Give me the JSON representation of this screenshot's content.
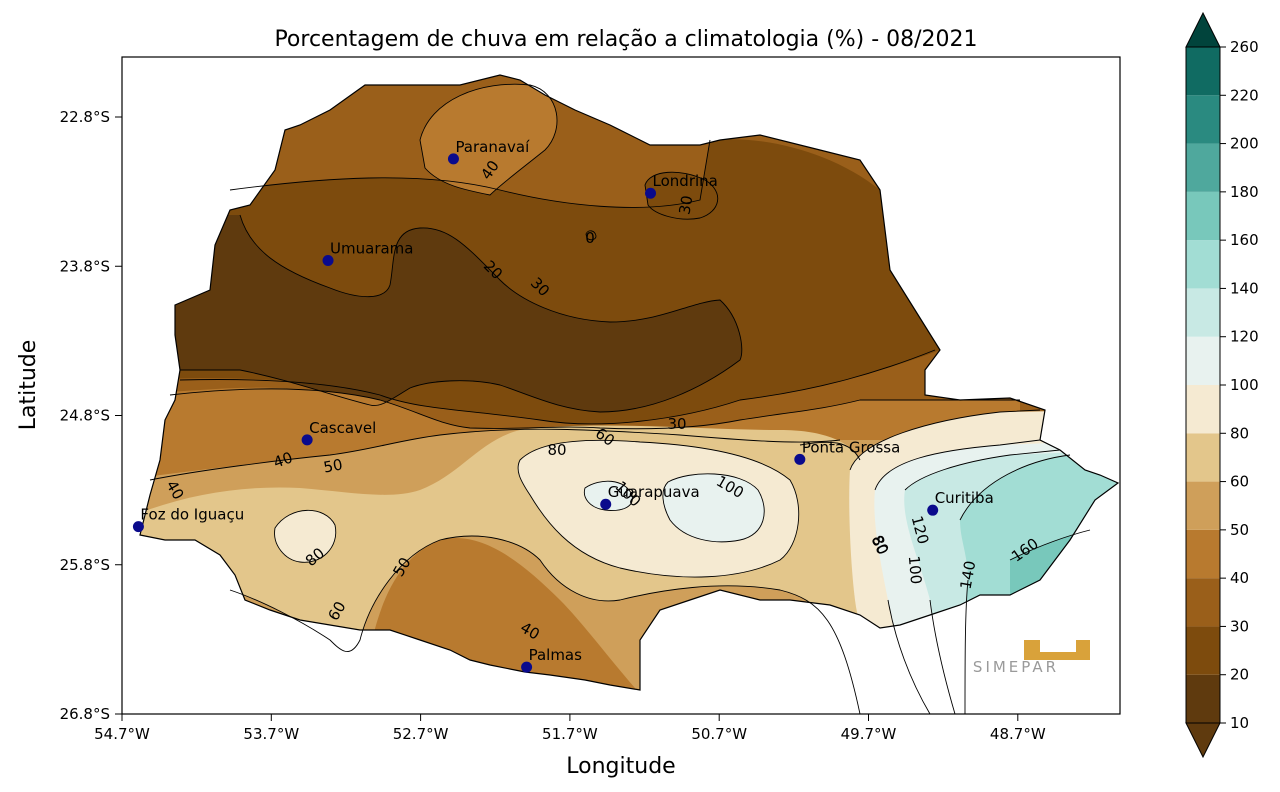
{
  "title": "Porcentagem de chuva em relação a climatologia (%) - 08/2021",
  "xlabel": "Longitude",
  "ylabel": "Latitude",
  "x_ticks": [
    "54.7°W",
    "53.7°W",
    "52.7°W",
    "51.7°W",
    "50.7°W",
    "49.7°W",
    "48.7°W"
  ],
  "y_ticks": [
    "22.8°S",
    "23.8°S",
    "24.8°S",
    "25.8°S",
    "26.8°S"
  ],
  "colorbar": {
    "labels": [
      "10",
      "20",
      "30",
      "40",
      "50",
      "60",
      "80",
      "100",
      "120",
      "140",
      "160",
      "180",
      "200",
      "220",
      "260"
    ],
    "colors": [
      "#5f3a0e",
      "#7d4b0d",
      "#9a5f1a",
      "#b87a2f",
      "#cf9f5a",
      "#e3c68b",
      "#f5ead2",
      "#e8f2ef",
      "#c8e9e4",
      "#a2ddd4",
      "#78c8bb",
      "#4fa89d",
      "#2a8a80",
      "#106b62",
      "#01443c"
    ],
    "over_color": "#01443c",
    "under_color": "#5f3a0e"
  },
  "cities": [
    {
      "name": "Paranavaí",
      "lon": -52.48,
      "lat": -23.08
    },
    {
      "name": "Londrina",
      "lon": -51.16,
      "lat": -23.31
    },
    {
      "name": "Umuarama",
      "lon": -53.32,
      "lat": -23.76
    },
    {
      "name": "Cascavel",
      "lon": -53.46,
      "lat": -24.96
    },
    {
      "name": "Ponta Grossa",
      "lon": -50.16,
      "lat": -25.09
    },
    {
      "name": "Guarapuava",
      "lon": -51.46,
      "lat": -25.39
    },
    {
      "name": "Curitiba",
      "lon": -49.27,
      "lat": -25.43
    },
    {
      "name": "Foz do Iguaçu",
      "lon": -54.59,
      "lat": -25.54
    },
    {
      "name": "Palmas",
      "lon": -51.99,
      "lat": -26.48
    }
  ],
  "contour_labels": [
    "40",
    "30",
    "0",
    "20",
    "30",
    "30",
    "60",
    "80",
    "40",
    "50",
    "40",
    "100",
    "100",
    "80",
    "50",
    "80",
    "60",
    "40",
    "120",
    "100",
    "80",
    "140",
    "160"
  ],
  "logo_text": "SIMEPAR"
}
